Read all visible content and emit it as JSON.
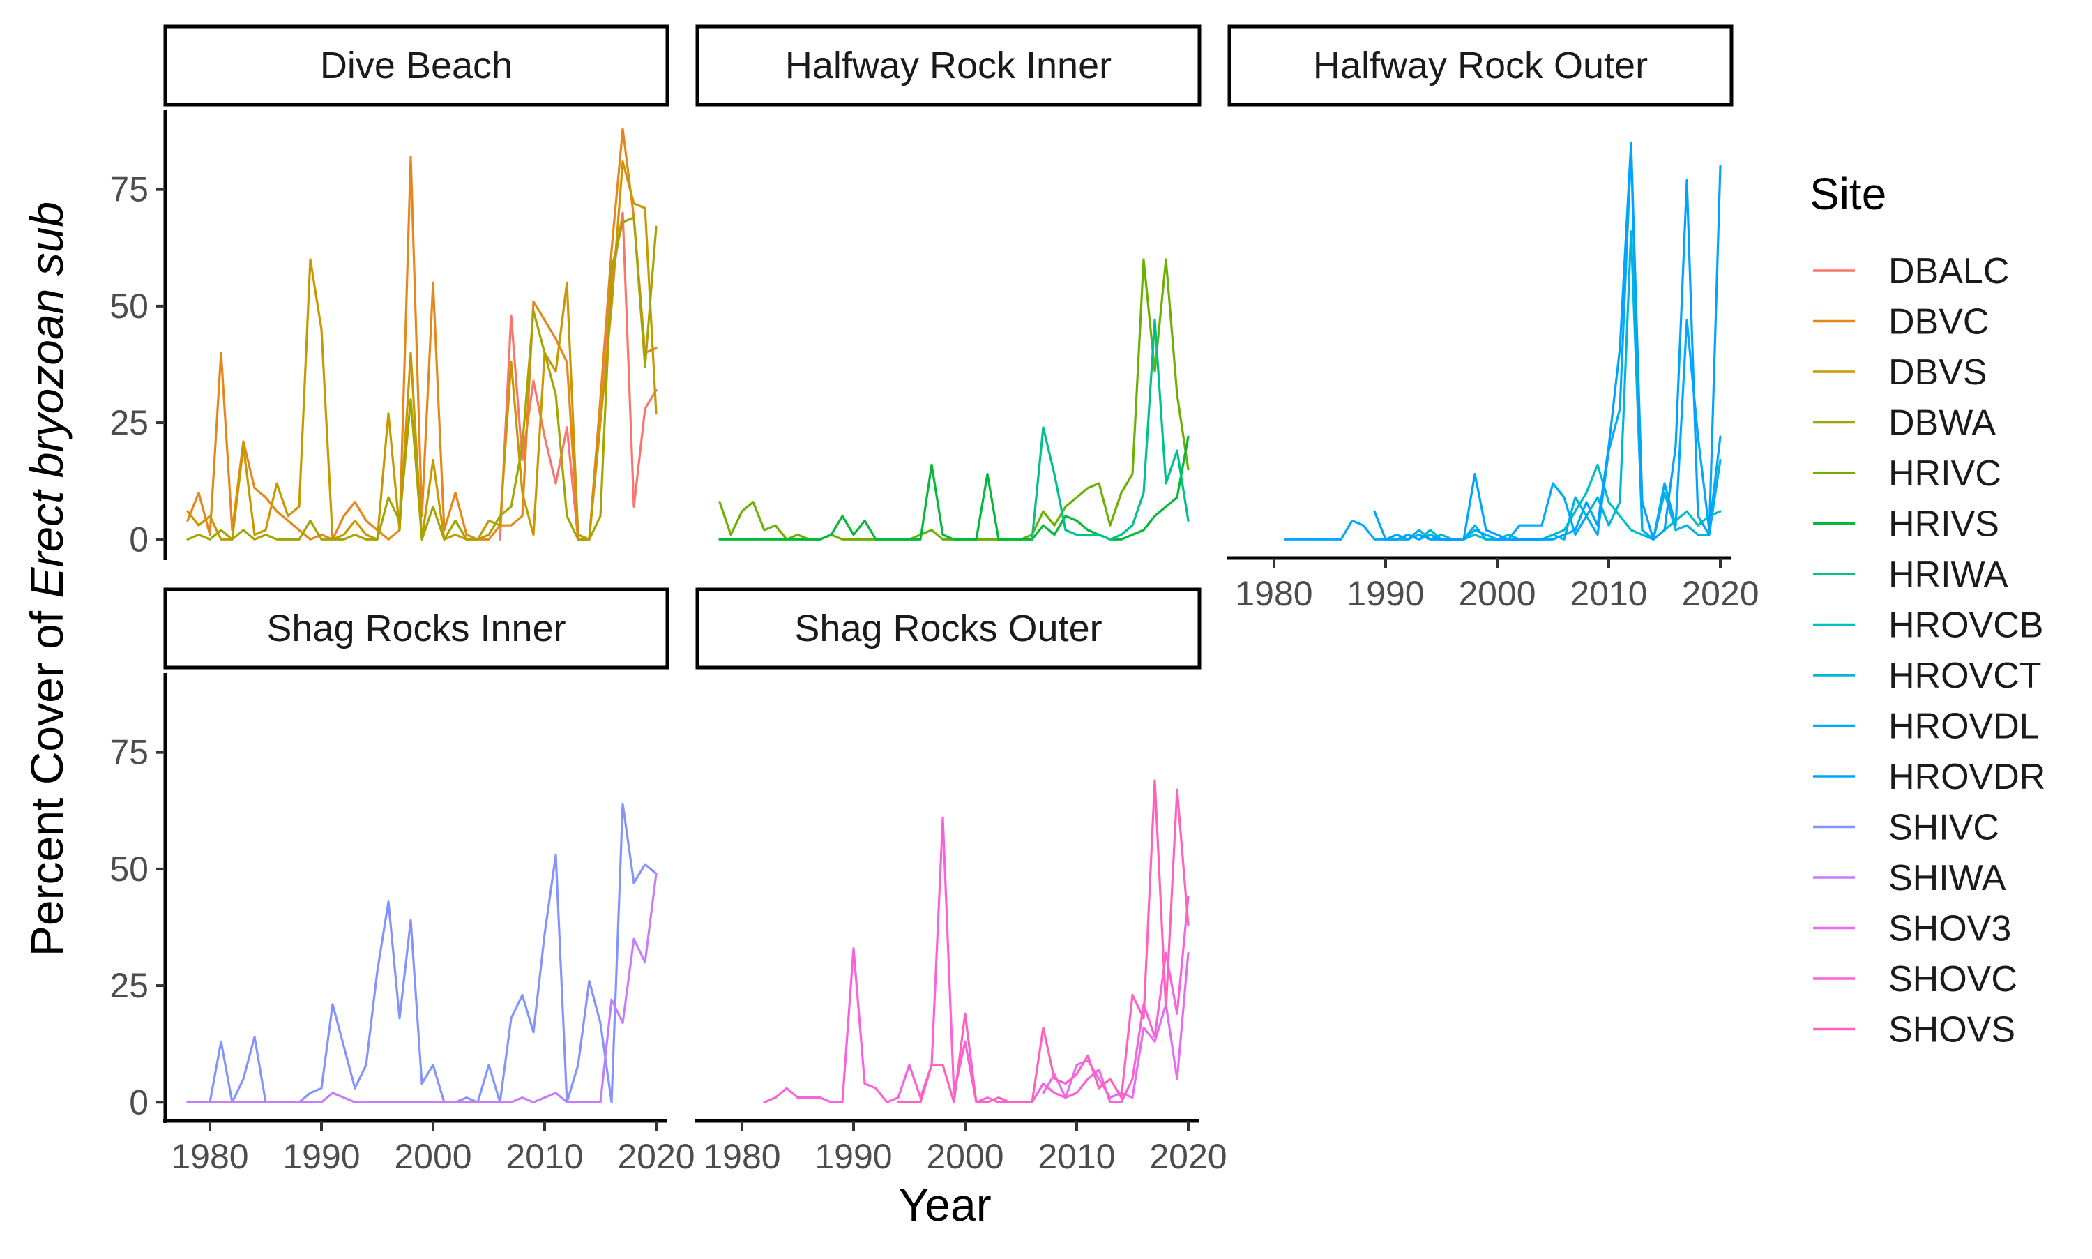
{
  "chart_data": {
    "type": "line",
    "xlabel": "Year",
    "ylabel_prefix": "Percent Cover of ",
    "ylabel_italic": "Erect bryozoan sub",
    "xlim": [
      1976,
      2021
    ],
    "ylim": [
      -4,
      92
    ],
    "x_ticks": [
      1980,
      1990,
      2000,
      2010,
      2020
    ],
    "y_ticks": [
      0,
      25,
      50,
      75
    ],
    "legend_title": "Site",
    "legend_position": "right",
    "grid": false,
    "series": [
      {
        "name": "DBALC",
        "panel": 0,
        "color": "#F8766D",
        "x": [
          2006,
          2007,
          2008,
          2009,
          2010,
          2011,
          2012,
          2013,
          2014,
          2015,
          2016,
          2017,
          2018,
          2019,
          2020
        ],
        "y": [
          0,
          48,
          17,
          34,
          22,
          12,
          24,
          0,
          0,
          30,
          55,
          70,
          7,
          28,
          32
        ]
      },
      {
        "name": "DBVC",
        "panel": 0,
        "color": "#E7861B",
        "x": [
          1978,
          1979,
          1980,
          1981,
          1982,
          1983,
          1984,
          1985,
          1986,
          1987,
          1988,
          1989,
          1990,
          1991,
          1992,
          1993,
          1994,
          1995,
          1996,
          1997,
          1998,
          1999,
          2000,
          2001,
          2002,
          2003,
          2004,
          2005,
          2006,
          2007,
          2008,
          2009,
          2010,
          2011,
          2012,
          2013,
          2014,
          2015,
          2016,
          2017,
          2018,
          2019,
          2020
        ],
        "y": [
          4,
          10,
          1,
          40,
          2,
          21,
          11,
          9,
          6,
          4,
          2,
          0,
          1,
          0,
          5,
          8,
          4,
          2,
          0,
          2,
          82,
          5,
          55,
          2,
          10,
          1,
          0,
          0,
          3,
          3,
          5,
          51,
          47,
          43,
          38,
          1,
          0,
          30,
          62,
          88,
          69,
          40,
          41
        ]
      },
      {
        "name": "DBVS",
        "panel": 0,
        "color": "#C99800",
        "x": [
          1978,
          1979,
          1980,
          1981,
          1982,
          1983,
          1984,
          1985,
          1986,
          1987,
          1988,
          1989,
          1990,
          1991,
          1992,
          1993,
          1994,
          1995,
          1996,
          1997,
          1998,
          1999,
          2000,
          2001,
          2002,
          2003,
          2004,
          2005,
          2006,
          2007,
          2008,
          2009,
          2010,
          2011,
          2012,
          2013,
          2014,
          2015,
          2016,
          2017,
          2018,
          2019,
          2020
        ],
        "y": [
          6,
          3,
          5,
          0,
          0,
          20,
          1,
          2,
          12,
          5,
          7,
          60,
          45,
          0,
          1,
          4,
          1,
          0,
          27,
          2,
          40,
          0,
          17,
          0,
          1,
          0,
          0,
          4,
          3,
          38,
          10,
          1,
          40,
          36,
          55,
          1,
          0,
          25,
          50,
          81,
          72,
          71,
          27
        ]
      },
      {
        "name": "DBWA",
        "panel": 0,
        "color": "#A3A500",
        "x": [
          1978,
          1979,
          1980,
          1981,
          1982,
          1983,
          1984,
          1985,
          1986,
          1987,
          1988,
          1989,
          1990,
          1991,
          1992,
          1993,
          1994,
          1995,
          1996,
          1997,
          1998,
          1999,
          2000,
          2001,
          2002,
          2003,
          2004,
          2005,
          2006,
          2007,
          2008,
          2009,
          2010,
          2011,
          2012,
          2013,
          2014,
          2015,
          2016,
          2017,
          2018,
          2019,
          2020
        ],
        "y": [
          0,
          1,
          0,
          2,
          0,
          2,
          0,
          1,
          0,
          0,
          0,
          4,
          0,
          0,
          0,
          1,
          0,
          0,
          9,
          4,
          30,
          0,
          7,
          0,
          4,
          0,
          0,
          1,
          5,
          7,
          20,
          49,
          40,
          31,
          5,
          0,
          0,
          5,
          58,
          68,
          69,
          37,
          67
        ]
      },
      {
        "name": "HRIVC",
        "panel": 1,
        "color": "#6BB100",
        "x": [
          1978,
          1979,
          1980,
          1981,
          1982,
          1983,
          1984,
          1985,
          1986,
          1987,
          1988,
          1989,
          1990,
          1991,
          1992,
          1993,
          1994,
          1995,
          1996,
          1997,
          1998,
          1999,
          2000,
          2001,
          2002,
          2003,
          2004,
          2005,
          2006,
          2007,
          2008,
          2009,
          2010,
          2011,
          2012,
          2013,
          2014,
          2015,
          2016,
          2017,
          2018,
          2019,
          2020
        ],
        "y": [
          8,
          1,
          6,
          8,
          2,
          3,
          0,
          1,
          0,
          0,
          1,
          0,
          0,
          0,
          0,
          0,
          0,
          0,
          1,
          2,
          0,
          0,
          0,
          0,
          0,
          0,
          0,
          0,
          1,
          6,
          3,
          7,
          9,
          11,
          12,
          3,
          10,
          14,
          60,
          36,
          60,
          31,
          15
        ]
      },
      {
        "name": "HRIVS",
        "panel": 1,
        "color": "#00BA38",
        "x": [
          1978,
          1979,
          1980,
          1981,
          1982,
          1983,
          1984,
          1985,
          1986,
          1987,
          1988,
          1989,
          1990,
          1991,
          1992,
          1993,
          1994,
          1995,
          1996,
          1997,
          1998,
          1999,
          2000,
          2001,
          2002,
          2003,
          2004,
          2005,
          2006,
          2007,
          2008,
          2009,
          2010,
          2011,
          2012,
          2013,
          2014,
          2015,
          2016,
          2017,
          2018,
          2019,
          2020
        ],
        "y": [
          0,
          0,
          0,
          0,
          0,
          0,
          0,
          0,
          0,
          0,
          1,
          5,
          1,
          4,
          0,
          0,
          0,
          0,
          0,
          16,
          1,
          0,
          0,
          0,
          14,
          0,
          0,
          0,
          0,
          3,
          1,
          5,
          4,
          2,
          1,
          0,
          0,
          1,
          2,
          5,
          7,
          9,
          22
        ]
      },
      {
        "name": "HRIWA",
        "panel": 1,
        "color": "#00C08B",
        "x": [
          2006,
          2007,
          2008,
          2009,
          2010,
          2011,
          2012,
          2013,
          2014,
          2015,
          2016,
          2017,
          2018,
          2019,
          2020
        ],
        "y": [
          0,
          24,
          14,
          2,
          1,
          1,
          1,
          0,
          1,
          3,
          10,
          47,
          12,
          19,
          4
        ]
      },
      {
        "name": "HROVCB",
        "panel": 2,
        "color": "#00BFC4",
        "x": [
          1990,
          1991,
          1992,
          1993,
          1994,
          1995,
          1996,
          1997,
          1998,
          1999,
          2000,
          2001,
          2002,
          2003,
          2004,
          2005,
          2006,
          2007,
          2008,
          2009,
          2010,
          2011,
          2012,
          2013,
          2014,
          2015,
          2016,
          2017,
          2018,
          2019,
          2020
        ],
        "y": [
          0,
          0,
          1,
          0,
          2,
          0,
          0,
          0,
          1,
          0,
          0,
          1,
          0,
          0,
          0,
          1,
          2,
          6,
          10,
          16,
          8,
          5,
          2,
          1,
          0,
          2,
          4,
          6,
          3,
          5,
          6
        ]
      },
      {
        "name": "HROVCT",
        "panel": 2,
        "color": "#00B5DA",
        "x": [
          1990,
          1991,
          1992,
          1993,
          1994,
          1995,
          1996,
          1997,
          1998,
          1999,
          2000,
          2001,
          2002,
          2003,
          2004,
          2005,
          2006,
          2007,
          2008,
          2009,
          2010,
          2011,
          2012,
          2013,
          2014,
          2015,
          2016,
          2017,
          2018,
          2019,
          2020
        ],
        "y": [
          0,
          0,
          0,
          2,
          0,
          1,
          0,
          0,
          3,
          0,
          0,
          0,
          0,
          0,
          0,
          1,
          0,
          9,
          5,
          9,
          3,
          8,
          66,
          2,
          0,
          10,
          2,
          3,
          1,
          1,
          17
        ]
      },
      {
        "name": "HROVDL",
        "panel": 2,
        "color": "#00A9FF",
        "x": [
          1981,
          1982,
          1983,
          1984,
          1985,
          1986,
          1987,
          1988,
          1989,
          1990,
          1991,
          1992,
          1993,
          1994,
          1995,
          1996,
          1997,
          1998,
          1999,
          2000,
          2001,
          2002,
          2003,
          2004,
          2005,
          2006,
          2007,
          2008,
          2009,
          2010,
          2011,
          2012,
          2013,
          2014,
          2015,
          2016,
          2017,
          2018,
          2019,
          2020
        ],
        "y": [
          0,
          0,
          0,
          0,
          0,
          0,
          4,
          3,
          0,
          0,
          0,
          1,
          0,
          1,
          0,
          0,
          0,
          2,
          1,
          0,
          0,
          3,
          3,
          3,
          12,
          9,
          1,
          5,
          1,
          19,
          28,
          84,
          2,
          0,
          12,
          3,
          47,
          22,
          2,
          22
        ]
      },
      {
        "name": "HROVDR",
        "panel": 2,
        "color": "#00A3FF",
        "x": [
          1989,
          1990,
          1991,
          1992,
          1993,
          1994,
          1995,
          1996,
          1997,
          1998,
          1999,
          2000,
          2001,
          2002,
          2003,
          2004,
          2005,
          2006,
          2007,
          2008,
          2009,
          2010,
          2011,
          2012,
          2013,
          2014,
          2015,
          2016,
          2017,
          2018,
          2019,
          2020
        ],
        "y": [
          6,
          0,
          1,
          0,
          1,
          0,
          0,
          0,
          0,
          14,
          2,
          1,
          0,
          0,
          0,
          0,
          0,
          1,
          2,
          8,
          3,
          20,
          41,
          85,
          8,
          0,
          2,
          20,
          77,
          5,
          1,
          80
        ]
      },
      {
        "name": "SHIVC",
        "panel": 3,
        "color": "#8494FF",
        "x": [
          1978,
          1979,
          1980,
          1981,
          1982,
          1983,
          1984,
          1985,
          1986,
          1987,
          1988,
          1989,
          1990,
          1991,
          1992,
          1993,
          1994,
          1995,
          1996,
          1997,
          1998,
          1999,
          2000,
          2001,
          2002,
          2003,
          2004,
          2005,
          2006,
          2007,
          2008,
          2009,
          2010,
          2011,
          2012,
          2013,
          2014,
          2015,
          2016,
          2017,
          2018,
          2019,
          2020
        ],
        "y": [
          0,
          0,
          0,
          13,
          0,
          5,
          14,
          0,
          0,
          0,
          0,
          2,
          3,
          21,
          12,
          3,
          8,
          28,
          43,
          18,
          39,
          4,
          8,
          0,
          0,
          1,
          0,
          8,
          0,
          18,
          23,
          15,
          36,
          53,
          0,
          8,
          26,
          17,
          0,
          64,
          47,
          51,
          49
        ]
      },
      {
        "name": "SHIWA",
        "panel": 3,
        "color": "#C77CFF",
        "x": [
          1978,
          1979,
          1980,
          1981,
          1982,
          1983,
          1984,
          1985,
          1986,
          1987,
          1988,
          1989,
          1990,
          1991,
          1992,
          1993,
          1994,
          1995,
          1996,
          1997,
          1998,
          1999,
          2000,
          2001,
          2002,
          2003,
          2004,
          2005,
          2006,
          2007,
          2008,
          2009,
          2010,
          2011,
          2012,
          2013,
          2014,
          2015,
          2016,
          2017,
          2018,
          2019,
          2020
        ],
        "y": [
          0,
          0,
          0,
          0,
          0,
          0,
          0,
          0,
          0,
          0,
          0,
          0,
          0,
          2,
          1,
          0,
          0,
          0,
          0,
          0,
          0,
          0,
          0,
          0,
          0,
          0,
          0,
          0,
          0,
          0,
          1,
          0,
          1,
          2,
          0,
          0,
          0,
          0,
          22,
          17,
          35,
          30,
          49
        ]
      },
      {
        "name": "SHOV3",
        "panel": 4,
        "color": "#E76BF3",
        "x": [
          2007,
          2008,
          2009,
          2010,
          2011,
          2012,
          2013,
          2014,
          2015,
          2016,
          2017,
          2018,
          2019,
          2020
        ],
        "y": [
          2,
          6,
          1,
          8,
          9,
          5,
          1,
          2,
          1,
          16,
          13,
          21,
          5,
          32
        ]
      },
      {
        "name": "SHOVC",
        "panel": 4,
        "color": "#FA62DB",
        "x": [
          1982,
          1983,
          1984,
          1985,
          1986,
          1987,
          1988,
          1989,
          1990,
          1991,
          1992,
          1993,
          1994,
          1995,
          1996,
          1997,
          1998,
          1999,
          2000,
          2001,
          2002,
          2003,
          2004,
          2005,
          2006,
          2007,
          2008,
          2009,
          2010,
          2011,
          2012,
          2013,
          2014,
          2015,
          2016,
          2017,
          2018,
          2019,
          2020
        ],
        "y": [
          0,
          1,
          3,
          1,
          1,
          1,
          0,
          0,
          33,
          4,
          3,
          0,
          1,
          8,
          1,
          8,
          61,
          2,
          13,
          0,
          1,
          0,
          0,
          0,
          0,
          4,
          2,
          1,
          2,
          5,
          7,
          0,
          0,
          5,
          21,
          14,
          32,
          19,
          44
        ]
      },
      {
        "name": "SHOVS",
        "panel": 4,
        "color": "#FF62BC",
        "x": [
          1994,
          1995,
          1996,
          1997,
          1998,
          1999,
          2000,
          2001,
          2002,
          2003,
          2004,
          2005,
          2006,
          2007,
          2008,
          2009,
          2010,
          2011,
          2012,
          2013,
          2014,
          2015,
          2016,
          2017,
          2018,
          2019,
          2020
        ],
        "y": [
          0,
          0,
          0,
          8,
          8,
          0,
          19,
          0,
          0,
          1,
          0,
          0,
          0,
          16,
          5,
          4,
          6,
          10,
          3,
          5,
          1,
          23,
          18,
          69,
          20,
          67,
          38
        ]
      }
    ]
  },
  "panels": [
    {
      "title": "Dive Beach"
    },
    {
      "title": "Halfway Rock Inner"
    },
    {
      "title": "Halfway Rock Outer"
    },
    {
      "title": "Shag Rocks Inner"
    },
    {
      "title": "Shag Rocks Outer"
    }
  ]
}
